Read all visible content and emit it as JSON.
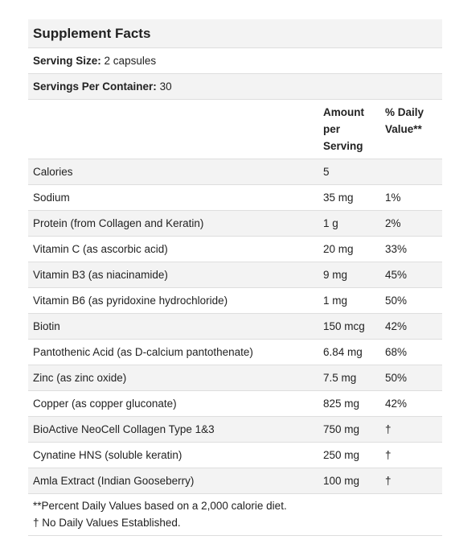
{
  "title": "Supplement Facts",
  "serving_size": {
    "label": "Serving Size:",
    "value": "2 capsules"
  },
  "servings_per_container": {
    "label": "Servings Per Container:",
    "value": "30"
  },
  "columns": {
    "amount": "Amount per Serving",
    "dv": "% Daily Value**"
  },
  "rows": [
    {
      "name": "Calories",
      "amount": "5",
      "dv": ""
    },
    {
      "name": "Sodium",
      "amount": "35 mg",
      "dv": "1%"
    },
    {
      "name": "Protein (from Collagen and Keratin)",
      "amount": "1 g",
      "dv": "2%"
    },
    {
      "name": "Vitamin C (as ascorbic acid)",
      "amount": "20 mg",
      "dv": "33%"
    },
    {
      "name": "Vitamin B3 (as niacinamide)",
      "amount": "9 mg",
      "dv": "45%"
    },
    {
      "name": "Vitamin B6 (as pyridoxine hydrochloride)",
      "amount": "1 mg",
      "dv": "50%"
    },
    {
      "name": "Biotin",
      "amount": "150 mcg",
      "dv": "42%"
    },
    {
      "name": "Pantothenic Acid (as D-calcium pantothenate)",
      "amount": "6.84 mg",
      "dv": "68%"
    },
    {
      "name": "Zinc (as zinc oxide)",
      "amount": "7.5 mg",
      "dv": "50%"
    },
    {
      "name": "Copper (as copper gluconate)",
      "amount": "825 mg",
      "dv": "42%"
    },
    {
      "name": "BioActive NeoCell Collagen Type 1&3",
      "amount": "750 mg",
      "dv": "†"
    },
    {
      "name": "Cynatine HNS (soluble keratin)",
      "amount": "250 mg",
      "dv": "†"
    },
    {
      "name": "Amla Extract (Indian Gooseberry)",
      "amount": "100 mg",
      "dv": "†"
    }
  ],
  "footnotes": [
    "**Percent Daily Values based on a 2,000 calorie diet.",
    "† No Daily Values Established."
  ]
}
